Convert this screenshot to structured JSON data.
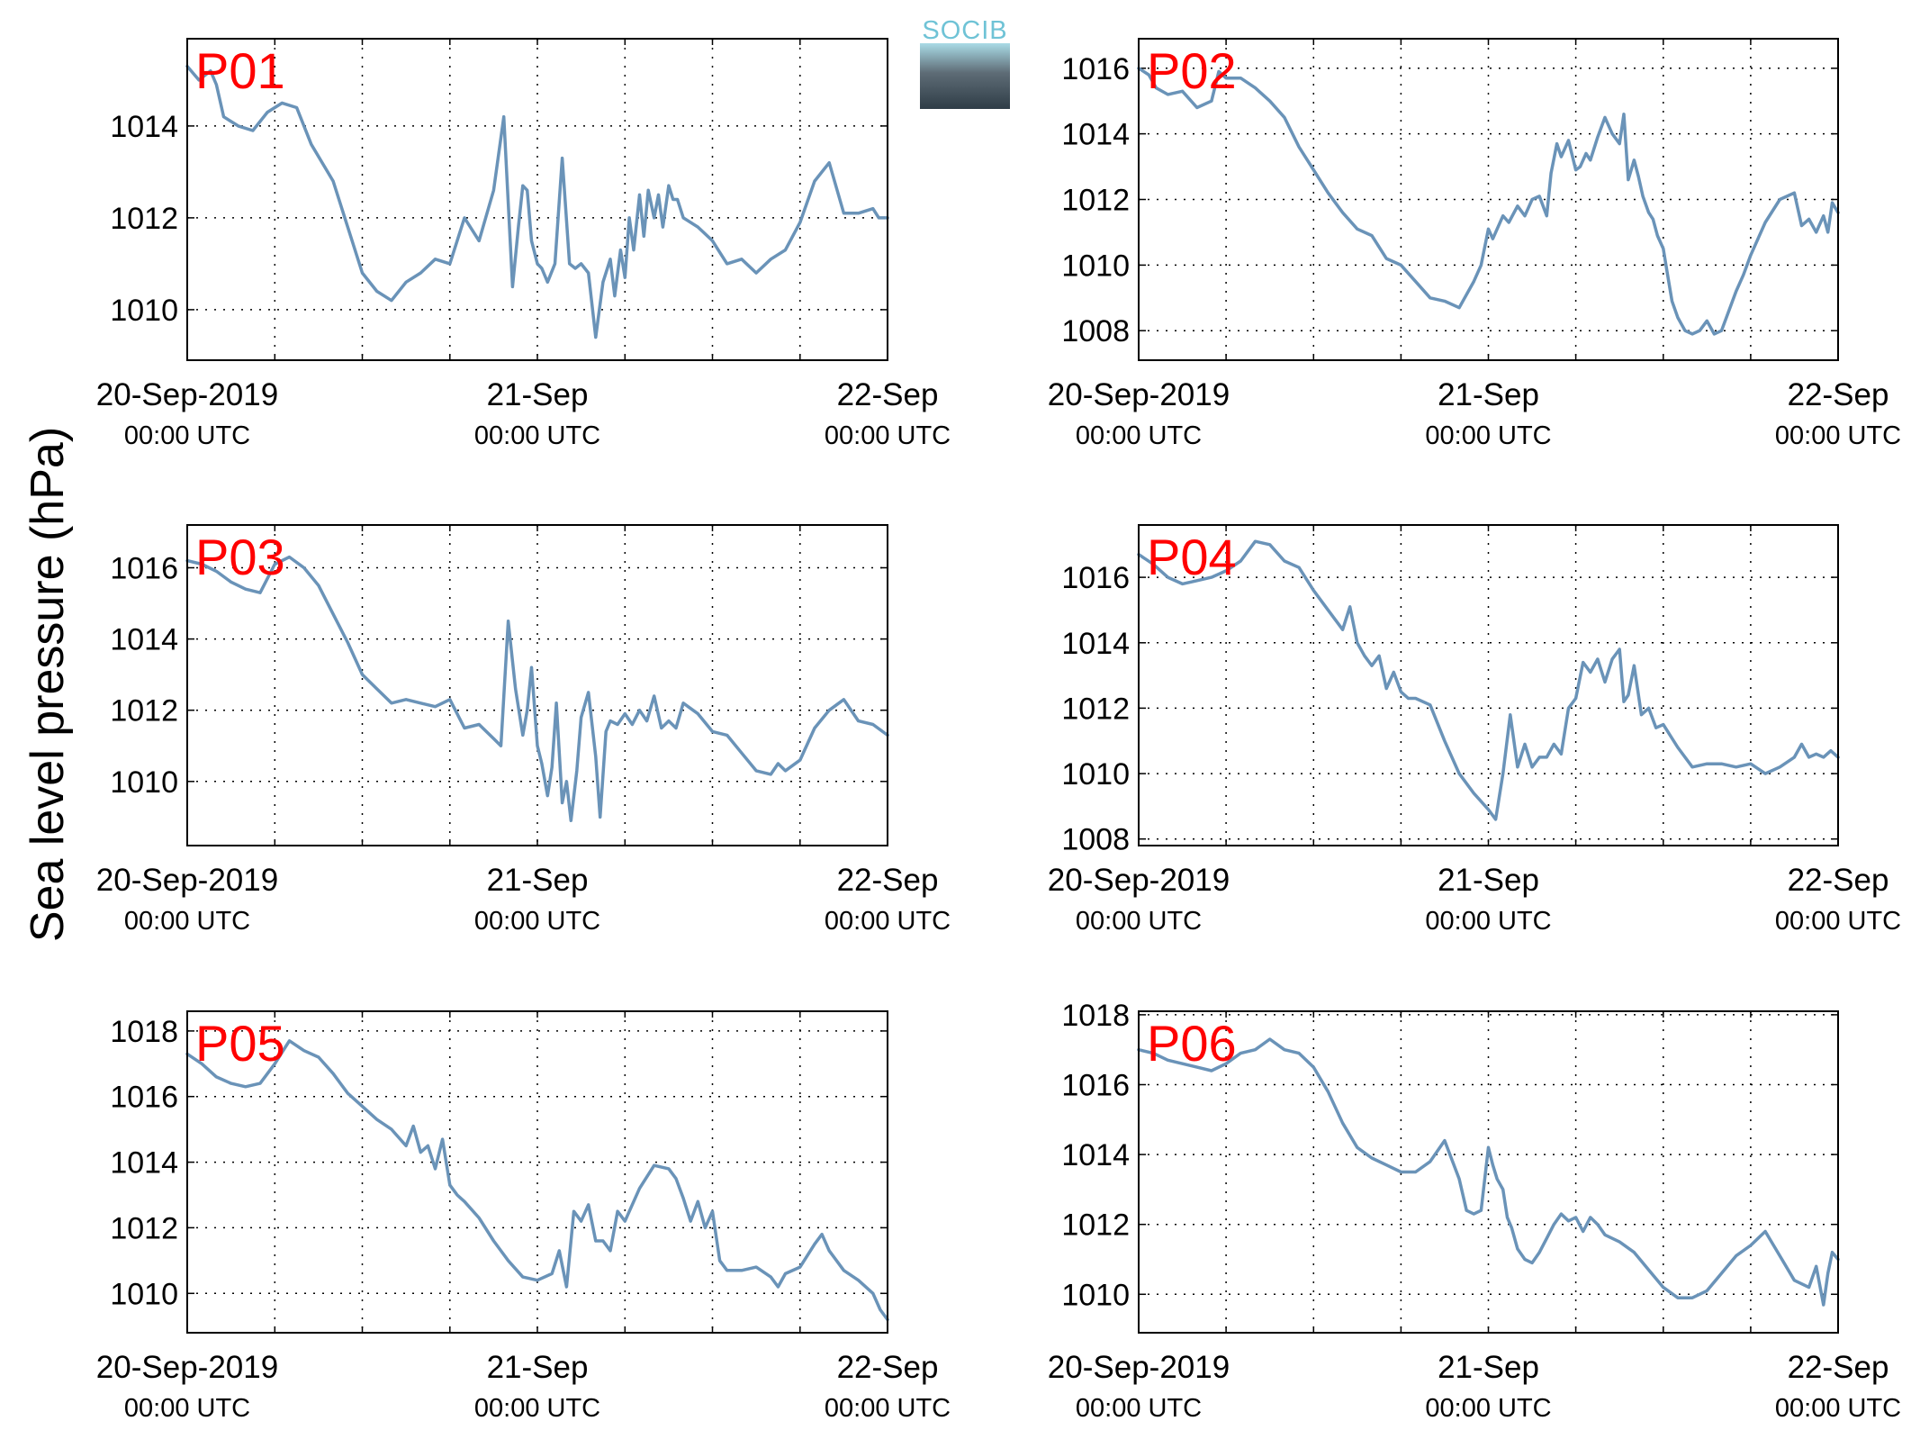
{
  "ylabel": "Sea level pressure (hPa)",
  "logo_text": "SOCIB",
  "colors": {
    "line": "#6a93b8",
    "label": "#ff0000",
    "axis": "#000000",
    "grid": "#000000"
  },
  "x_ticks": [
    {
      "top": "20-Sep-2019",
      "bottom": "00:00 UTC"
    },
    {
      "top": "21-Sep",
      "bottom": "00:00 UTC"
    },
    {
      "top": "22-Sep",
      "bottom": "00:00 UTC"
    }
  ],
  "chart_data": [
    {
      "type": "line",
      "label": "P01",
      "xlim": [
        0,
        48
      ],
      "ylim": [
        1008.9,
        1015.9
      ],
      "yticks": [
        1010,
        1012,
        1014
      ],
      "grid": true,
      "x": [
        0,
        0.8,
        1.6,
        2,
        2.5,
        3.5,
        4.5,
        5.5,
        6.5,
        7.5,
        8.5,
        10,
        11,
        12,
        13,
        14,
        15,
        16,
        17,
        18,
        19,
        20,
        21,
        21.7,
        22.3,
        22.7,
        23,
        23.3,
        23.6,
        24,
        24.3,
        24.7,
        25.2,
        25.7,
        26.2,
        26.6,
        27,
        27.5,
        28,
        28.5,
        29,
        29.3,
        29.7,
        30,
        30.3,
        30.6,
        31,
        31.3,
        31.6,
        32,
        32.3,
        32.6,
        33,
        33.3,
        33.6,
        34,
        35,
        36,
        37,
        38,
        39,
        40,
        41,
        42,
        43,
        44,
        45,
        46,
        47,
        47.4,
        48
      ],
      "y": [
        1015.3,
        1015.0,
        1015.2,
        1014.9,
        1014.2,
        1014.0,
        1013.9,
        1014.3,
        1014.5,
        1014.4,
        1013.6,
        1012.8,
        1011.8,
        1010.8,
        1010.4,
        1010.2,
        1010.6,
        1010.8,
        1011.1,
        1011.0,
        1012.0,
        1011.5,
        1012.6,
        1014.2,
        1010.5,
        1011.8,
        1012.7,
        1012.6,
        1011.5,
        1011.0,
        1010.9,
        1010.6,
        1011.0,
        1013.3,
        1011.0,
        1010.9,
        1011.0,
        1010.8,
        1009.4,
        1010.6,
        1011.1,
        1010.3,
        1011.3,
        1010.7,
        1012.0,
        1011.3,
        1012.5,
        1011.6,
        1012.6,
        1012.0,
        1012.5,
        1011.8,
        1012.7,
        1012.4,
        1012.4,
        1012.0,
        1011.8,
        1011.5,
        1011.0,
        1011.1,
        1010.8,
        1011.1,
        1011.3,
        1011.9,
        1012.8,
        1013.2,
        1012.1,
        1012.1,
        1012.2,
        1012.0,
        1012.0
      ]
    },
    {
      "type": "line",
      "label": "P02",
      "xlim": [
        0,
        48
      ],
      "ylim": [
        1007.1,
        1016.9
      ],
      "yticks": [
        1008,
        1010,
        1012,
        1014,
        1016
      ],
      "grid": true,
      "x": [
        0,
        0.7,
        1.2,
        2,
        3,
        4,
        5,
        5.5,
        6,
        7,
        8,
        9,
        10,
        11,
        12,
        13,
        14,
        15,
        16,
        17,
        18,
        19,
        20,
        21,
        22,
        23,
        23.5,
        24,
        24.3,
        25,
        25.4,
        26,
        26.5,
        27,
        27.5,
        28,
        28.3,
        28.7,
        29,
        29.5,
        30,
        30.3,
        30.7,
        31,
        31.5,
        32,
        32.5,
        33,
        33.3,
        33.6,
        34,
        34.3,
        34.6,
        35,
        35.3,
        35.6,
        36,
        36.3,
        36.6,
        37,
        37.5,
        38,
        38.5,
        39,
        39.5,
        40,
        40.5,
        41,
        41.5,
        42,
        43,
        44,
        45,
        45.5,
        46,
        46.5,
        47,
        47.3,
        47.6,
        48
      ],
      "y": [
        1016.0,
        1015.8,
        1015.4,
        1015.2,
        1015.3,
        1014.8,
        1015.0,
        1015.9,
        1015.7,
        1015.7,
        1015.4,
        1015.0,
        1014.5,
        1013.6,
        1012.9,
        1012.2,
        1011.6,
        1011.1,
        1010.9,
        1010.2,
        1010.0,
        1009.5,
        1009.0,
        1008.9,
        1008.7,
        1009.5,
        1010.0,
        1011.1,
        1010.8,
        1011.5,
        1011.3,
        1011.8,
        1011.5,
        1012.0,
        1012.1,
        1011.5,
        1012.8,
        1013.7,
        1013.3,
        1013.8,
        1012.9,
        1013.0,
        1013.4,
        1013.2,
        1013.9,
        1014.5,
        1014.0,
        1013.7,
        1014.6,
        1012.6,
        1013.2,
        1012.7,
        1012.1,
        1011.6,
        1011.4,
        1010.9,
        1010.5,
        1009.7,
        1008.9,
        1008.4,
        1008.0,
        1007.9,
        1008.0,
        1008.3,
        1007.9,
        1008.0,
        1008.6,
        1009.2,
        1009.7,
        1010.3,
        1011.3,
        1012.0,
        1012.2,
        1011.2,
        1011.4,
        1011.0,
        1011.5,
        1011.0,
        1011.9,
        1011.6
      ]
    },
    {
      "type": "line",
      "label": "P03",
      "xlim": [
        0,
        48
      ],
      "ylim": [
        1008.2,
        1017.2
      ],
      "yticks": [
        1010,
        1012,
        1014,
        1016
      ],
      "grid": true,
      "x": [
        0,
        1,
        2,
        3,
        4,
        5,
        6,
        7,
        8,
        9,
        10,
        11,
        12,
        13,
        14,
        15,
        16,
        17,
        18,
        19,
        20,
        21,
        21.5,
        22,
        22.5,
        23,
        23.3,
        23.6,
        24,
        24.3,
        24.7,
        25,
        25.3,
        25.7,
        26,
        26.3,
        26.7,
        27,
        27.5,
        28,
        28.3,
        28.7,
        29,
        29.5,
        30,
        30.5,
        31,
        31.5,
        32,
        32.5,
        33,
        33.5,
        34,
        35,
        36,
        37,
        38,
        39,
        40,
        40.5,
        41,
        42,
        43,
        44,
        45,
        46,
        47,
        48
      ],
      "y": [
        1016.2,
        1016.1,
        1015.9,
        1015.6,
        1015.4,
        1015.3,
        1016.1,
        1016.3,
        1016.0,
        1015.5,
        1014.7,
        1013.9,
        1013.0,
        1012.6,
        1012.2,
        1012.3,
        1012.2,
        1012.1,
        1012.3,
        1011.5,
        1011.6,
        1011.2,
        1011.0,
        1014.5,
        1012.6,
        1011.3,
        1012.0,
        1013.2,
        1011.0,
        1010.5,
        1009.6,
        1010.4,
        1012.2,
        1009.4,
        1010.0,
        1008.9,
        1010.3,
        1011.8,
        1012.5,
        1010.7,
        1009.0,
        1011.4,
        1011.7,
        1011.6,
        1011.9,
        1011.6,
        1012.0,
        1011.7,
        1012.4,
        1011.5,
        1011.7,
        1011.5,
        1012.2,
        1011.9,
        1011.4,
        1011.3,
        1010.8,
        1010.3,
        1010.2,
        1010.5,
        1010.3,
        1010.6,
        1011.5,
        1012.0,
        1012.3,
        1011.7,
        1011.6,
        1011.3
      ]
    },
    {
      "type": "line",
      "label": "P04",
      "xlim": [
        0,
        48
      ],
      "ylim": [
        1007.8,
        1017.6
      ],
      "yticks": [
        1008,
        1010,
        1012,
        1014,
        1016
      ],
      "grid": true,
      "x": [
        0,
        1,
        2,
        3,
        4,
        5,
        6,
        7,
        8,
        9,
        10,
        11,
        12,
        13,
        14,
        14.5,
        15,
        15.5,
        16,
        16.5,
        17,
        17.5,
        18,
        18.5,
        19,
        20,
        21,
        22,
        23,
        24,
        24.5,
        25,
        25.5,
        26,
        26.5,
        27,
        27.5,
        28,
        28.5,
        29,
        29.5,
        30,
        30.5,
        31,
        31.5,
        32,
        32.5,
        33,
        33.3,
        33.6,
        34,
        34.5,
        35,
        35.5,
        36,
        37,
        38,
        39,
        40,
        41,
        42,
        43,
        44,
        45,
        45.5,
        46,
        46.5,
        47,
        47.5,
        48
      ],
      "y": [
        1016.7,
        1016.4,
        1016.0,
        1015.8,
        1015.9,
        1016.0,
        1016.2,
        1016.5,
        1017.1,
        1017.0,
        1016.5,
        1016.3,
        1015.6,
        1015.0,
        1014.4,
        1015.1,
        1014.0,
        1013.6,
        1013.3,
        1013.6,
        1012.6,
        1013.1,
        1012.5,
        1012.3,
        1012.3,
        1012.1,
        1011.0,
        1010.0,
        1009.4,
        1008.9,
        1008.6,
        1010.0,
        1011.8,
        1010.2,
        1010.9,
        1010.2,
        1010.5,
        1010.5,
        1010.9,
        1010.6,
        1012.0,
        1012.3,
        1013.4,
        1013.1,
        1013.5,
        1012.8,
        1013.5,
        1013.8,
        1012.2,
        1012.4,
        1013.3,
        1011.8,
        1012.0,
        1011.4,
        1011.5,
        1010.8,
        1010.2,
        1010.3,
        1010.3,
        1010.2,
        1010.3,
        1010.0,
        1010.2,
        1010.5,
        1010.9,
        1010.5,
        1010.6,
        1010.5,
        1010.7,
        1010.5
      ]
    },
    {
      "type": "line",
      "label": "P05",
      "xlim": [
        0,
        48
      ],
      "ylim": [
        1008.8,
        1018.6
      ],
      "yticks": [
        1010,
        1012,
        1014,
        1016,
        1018
      ],
      "grid": true,
      "x": [
        0,
        1,
        2,
        3,
        4,
        5,
        6,
        7,
        8,
        9,
        10,
        11,
        12,
        13,
        14,
        15,
        15.5,
        16,
        16.5,
        17,
        17.5,
        18,
        18.5,
        19,
        20,
        21,
        22,
        23,
        24,
        25,
        25.5,
        26,
        26.5,
        27,
        27.5,
        28,
        28.5,
        29,
        29.5,
        30,
        31,
        32,
        33,
        33.5,
        34,
        34.5,
        35,
        35.5,
        36,
        36.5,
        37,
        38,
        39,
        40,
        40.5,
        41,
        42,
        43,
        43.5,
        44,
        45,
        46,
        47,
        47.5,
        48
      ],
      "y": [
        1017.3,
        1017.0,
        1016.6,
        1016.4,
        1016.3,
        1016.4,
        1017.0,
        1017.7,
        1017.4,
        1017.2,
        1016.7,
        1016.1,
        1015.7,
        1015.3,
        1015.0,
        1014.5,
        1015.1,
        1014.3,
        1014.5,
        1013.8,
        1014.7,
        1013.3,
        1013.0,
        1012.8,
        1012.3,
        1011.6,
        1011.0,
        1010.5,
        1010.4,
        1010.6,
        1011.3,
        1010.2,
        1012.5,
        1012.2,
        1012.7,
        1011.6,
        1011.6,
        1011.3,
        1012.5,
        1012.2,
        1013.2,
        1013.9,
        1013.8,
        1013.5,
        1012.9,
        1012.2,
        1012.8,
        1012.0,
        1012.5,
        1011.0,
        1010.7,
        1010.7,
        1010.8,
        1010.5,
        1010.2,
        1010.6,
        1010.8,
        1011.5,
        1011.8,
        1011.3,
        1010.7,
        1010.4,
        1010.0,
        1009.5,
        1009.2
      ]
    },
    {
      "type": "line",
      "label": "P06",
      "xlim": [
        0,
        48
      ],
      "ylim": [
        1008.9,
        1018.1
      ],
      "yticks": [
        1010,
        1012,
        1014,
        1016,
        1018
      ],
      "grid": true,
      "x": [
        0,
        1,
        2,
        3,
        4,
        5,
        6,
        7,
        8,
        9,
        10,
        11,
        12,
        13,
        14,
        15,
        16,
        17,
        18,
        19,
        20,
        21,
        22,
        22.5,
        23,
        23.5,
        24,
        24.3,
        24.6,
        25,
        25.3,
        25.6,
        26,
        26.5,
        27,
        27.5,
        28,
        28.5,
        29,
        29.5,
        30,
        30.5,
        31,
        31.5,
        32,
        33,
        34,
        35,
        36,
        37,
        38,
        39,
        40,
        41,
        42,
        43,
        44,
        45,
        46,
        46.5,
        47,
        47.3,
        47.6,
        48
      ],
      "y": [
        1017.0,
        1016.9,
        1016.7,
        1016.6,
        1016.5,
        1016.4,
        1016.6,
        1016.9,
        1017.0,
        1017.3,
        1017.0,
        1016.9,
        1016.5,
        1015.8,
        1014.9,
        1014.2,
        1013.9,
        1013.7,
        1013.5,
        1013.5,
        1013.8,
        1014.4,
        1013.3,
        1012.4,
        1012.3,
        1012.4,
        1014.2,
        1013.7,
        1013.3,
        1013.0,
        1012.2,
        1011.9,
        1011.3,
        1011.0,
        1010.9,
        1011.2,
        1011.6,
        1012.0,
        1012.3,
        1012.1,
        1012.2,
        1011.8,
        1012.2,
        1012.0,
        1011.7,
        1011.5,
        1011.2,
        1010.7,
        1010.2,
        1009.9,
        1009.9,
        1010.1,
        1010.6,
        1011.1,
        1011.4,
        1011.8,
        1011.1,
        1010.4,
        1010.2,
        1010.8,
        1009.7,
        1010.6,
        1011.2,
        1011.0
      ]
    }
  ]
}
